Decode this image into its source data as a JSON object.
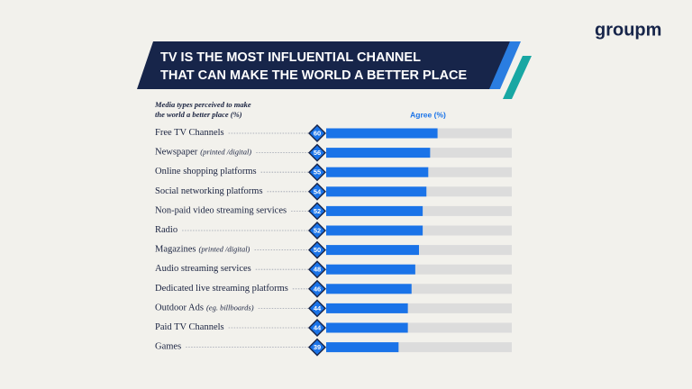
{
  "logo": "groupm",
  "chart_data": {
    "type": "bar",
    "title": [
      "TV IS THE MOST INFLUENTIAL CHANNEL",
      "THAT CAN MAKE THE WORLD A BETTER PLACE"
    ],
    "subtitle": [
      "Media types perceived to make",
      "the world a better place (%)"
    ],
    "categories": [
      "Free TV Channels",
      "Newspaper",
      "Online shopping platforms",
      "Social networking platforms",
      "Non-paid video streaming services",
      "Radio",
      "Magazines",
      "Audio streaming services",
      "Dedicated live streaming platforms",
      "Outdoor Ads",
      "Paid TV Channels",
      "Games"
    ],
    "category_notes": [
      null,
      "(printed /digital)",
      null,
      null,
      null,
      null,
      "(printed /digital)",
      null,
      null,
      "(eg. billboards)",
      null,
      null
    ],
    "series": [
      {
        "name": "Agree (%)",
        "color": "#1a73e8",
        "values": [
          60,
          56,
          55,
          54,
          52,
          52,
          50,
          48,
          46,
          44,
          44,
          39
        ]
      }
    ],
    "xlim": [
      0,
      100
    ]
  }
}
